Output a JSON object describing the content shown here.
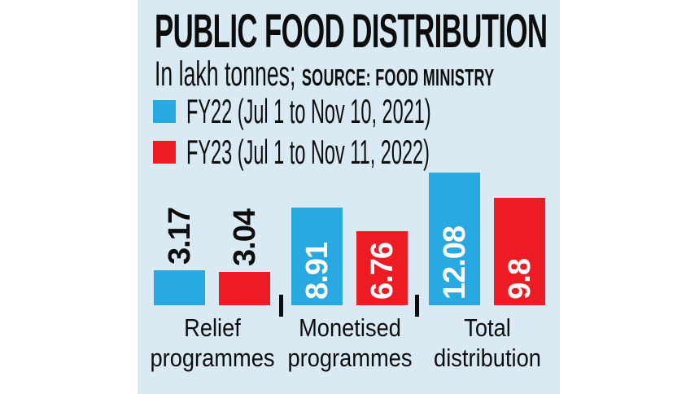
{
  "header": {
    "title": "PUBLIC FOOD DISTRIBUTION",
    "subtitle": "In lakh tonnes;",
    "source": "SOURCE: FOOD MINISTRY"
  },
  "legend": [
    {
      "label": "FY22 (Jul 1 to Nov 10, 2021)",
      "color": "#29a9e1"
    },
    {
      "label": "FY23 (Jul 1 to Nov 11, 2022)",
      "color": "#ed1c24"
    }
  ],
  "chart_data": {
    "type": "bar",
    "title": "PUBLIC FOOD DISTRIBUTION",
    "subtitle": "In lakh tonnes",
    "source": "FOOD MINISTRY",
    "unit": "lakh tonnes",
    "categories": [
      "Relief programmes",
      "Monetised programmes",
      "Total distribution"
    ],
    "category_lines": [
      [
        "Relief",
        "programmes"
      ],
      [
        "Monetised",
        "programmes"
      ],
      [
        "Total",
        "distribution"
      ]
    ],
    "series": [
      {
        "name": "FY22 (Jul 1 to Nov 10, 2021)",
        "color": "#29a9e1",
        "values": [
          3.17,
          8.91,
          12.08
        ],
        "labels": [
          "3.17",
          "8.91",
          "12.08"
        ]
      },
      {
        "name": "FY23 (Jul 1 to Nov 11, 2022)",
        "color": "#ed1c24",
        "values": [
          3.04,
          6.76,
          9.8
        ],
        "labels": [
          "3.04",
          "6.76",
          "9.8"
        ]
      }
    ],
    "value_label_color_inside": "#ffffff",
    "value_label_color_outside": "#0d0d0d",
    "ylim": [
      0,
      13
    ],
    "grid": false,
    "legend_position": "top-left"
  },
  "colors": {
    "page_bg": "#ffffff",
    "panel_bg": "#daeaf5",
    "text": "#0d0d0d"
  }
}
